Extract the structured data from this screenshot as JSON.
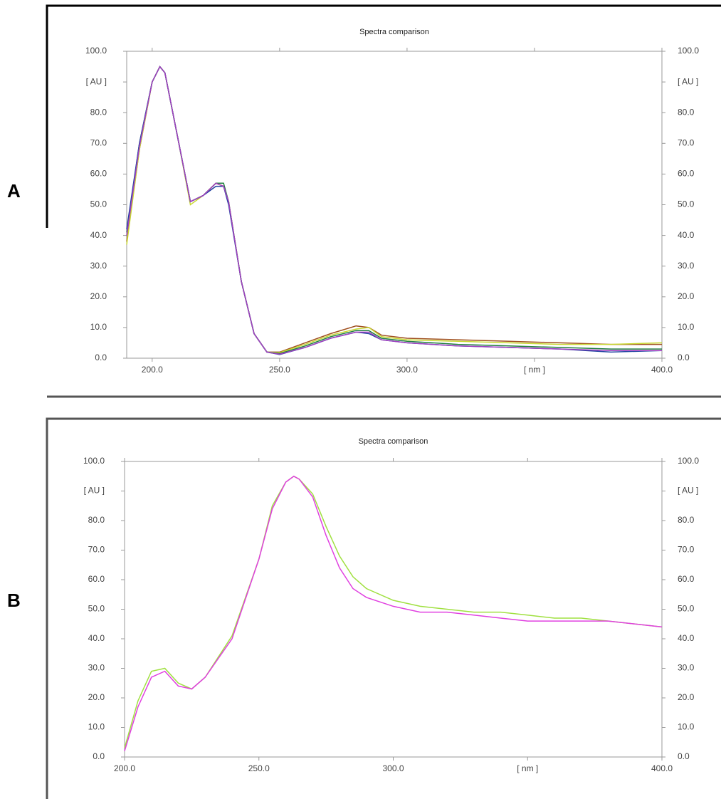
{
  "chart_data": [
    {
      "type": "line",
      "panel_label": "A",
      "title": "Spectra comparison",
      "xlim": [
        190,
        400
      ],
      "xticks": [
        {
          "value": 200,
          "label": "200.0"
        },
        {
          "value": 250,
          "label": "250.0"
        },
        {
          "value": 300,
          "label": "300.0"
        },
        {
          "value": 350,
          "label": "[ nm ]"
        },
        {
          "value": 400,
          "label": "400.0"
        }
      ],
      "ylim": [
        0,
        100
      ],
      "yticks": [
        {
          "value": 0,
          "label": "0.0"
        },
        {
          "value": 10,
          "label": "10.0"
        },
        {
          "value": 20,
          "label": "20.0"
        },
        {
          "value": 30,
          "label": "30.0"
        },
        {
          "value": 40,
          "label": "40.0"
        },
        {
          "value": 50,
          "label": "50.0"
        },
        {
          "value": 60,
          "label": "60.0"
        },
        {
          "value": 70,
          "label": "70.0"
        },
        {
          "value": 80,
          "label": "80.0"
        },
        {
          "value": 90,
          "label": "[ AU ]"
        },
        {
          "value": 100,
          "label": "100.0"
        }
      ],
      "x": [
        190,
        195,
        200,
        203,
        205,
        210,
        215,
        220,
        225,
        228,
        230,
        235,
        240,
        245,
        250,
        260,
        270,
        280,
        285,
        290,
        300,
        320,
        340,
        360,
        380,
        400
      ],
      "series": [
        {
          "color": "#a05020",
          "values": [
            38,
            68,
            90,
            95,
            93,
            72,
            51,
            53,
            57,
            56,
            51,
            25,
            8,
            2,
            2,
            5,
            8,
            10.5,
            10,
            7.5,
            6.5,
            6,
            5.5,
            5,
            4.5,
            4.5
          ]
        },
        {
          "color": "#c8d830",
          "values": [
            37,
            68,
            90,
            95,
            93,
            72,
            50,
            53,
            57,
            56,
            51,
            25,
            8,
            2,
            1.8,
            4.5,
            7.5,
            9.5,
            10,
            7,
            6,
            5.5,
            5,
            4.5,
            4.5,
            5
          ]
        },
        {
          "color": "#208040",
          "values": [
            41,
            70,
            90,
            95,
            93,
            72,
            51,
            53,
            57,
            57,
            51,
            25,
            8,
            2,
            1.5,
            4,
            7,
            9,
            9,
            6.5,
            5.5,
            4.5,
            4,
            3.5,
            3,
            3
          ]
        },
        {
          "color": "#2040a0",
          "values": [
            42,
            70,
            90,
            95,
            93,
            72,
            51,
            53,
            56,
            56,
            50,
            25,
            8,
            2,
            1.2,
            3.5,
            6.5,
            8.5,
            8,
            6,
            5,
            4,
            3.5,
            3,
            2,
            2.5
          ]
        },
        {
          "color": "#a040c0",
          "values": [
            40,
            69,
            90,
            95,
            93,
            72,
            51,
            53,
            57,
            56,
            51,
            25,
            8,
            2,
            1.3,
            3.5,
            6.5,
            8.5,
            8.5,
            6,
            5,
            4,
            3.5,
            3,
            2.5,
            2.5
          ]
        }
      ]
    },
    {
      "type": "line",
      "panel_label": "B",
      "title": "Spectra comparison",
      "xlim": [
        200,
        400
      ],
      "xticks": [
        {
          "value": 200,
          "label": "200.0"
        },
        {
          "value": 250,
          "label": "250.0"
        },
        {
          "value": 300,
          "label": "300.0"
        },
        {
          "value": 350,
          "label": "[ nm ]"
        },
        {
          "value": 400,
          "label": "400.0"
        }
      ],
      "ylim": [
        0,
        100
      ],
      "yticks": [
        {
          "value": 0,
          "label": "0.0"
        },
        {
          "value": 10,
          "label": "10.0"
        },
        {
          "value": 20,
          "label": "20.0"
        },
        {
          "value": 30,
          "label": "30.0"
        },
        {
          "value": 40,
          "label": "40.0"
        },
        {
          "value": 50,
          "label": "50.0"
        },
        {
          "value": 60,
          "label": "60.0"
        },
        {
          "value": 70,
          "label": "70.0"
        },
        {
          "value": 80,
          "label": "80.0"
        },
        {
          "value": 90,
          "label": "[ AU ]"
        },
        {
          "value": 100,
          "label": "100.0"
        }
      ],
      "x": [
        200,
        205,
        210,
        215,
        220,
        225,
        230,
        240,
        250,
        255,
        260,
        263,
        265,
        270,
        275,
        280,
        285,
        290,
        300,
        310,
        320,
        330,
        340,
        350,
        360,
        370,
        380,
        390,
        400
      ],
      "series": [
        {
          "color": "#a0e040",
          "values": [
            3,
            19,
            29,
            30,
            25,
            23,
            27,
            41,
            67,
            85,
            93,
            95,
            94,
            89,
            78,
            68,
            61,
            57,
            53,
            51,
            50,
            49,
            49,
            48,
            47,
            47,
            46,
            45,
            44
          ]
        },
        {
          "color": "#e040e0",
          "values": [
            2,
            17,
            27,
            29,
            24,
            23,
            27,
            40,
            67,
            84,
            93,
            95,
            94,
            88,
            75,
            64,
            57,
            54,
            51,
            49,
            49,
            48,
            47,
            46,
            46,
            46,
            46,
            45,
            44
          ]
        }
      ]
    }
  ]
}
